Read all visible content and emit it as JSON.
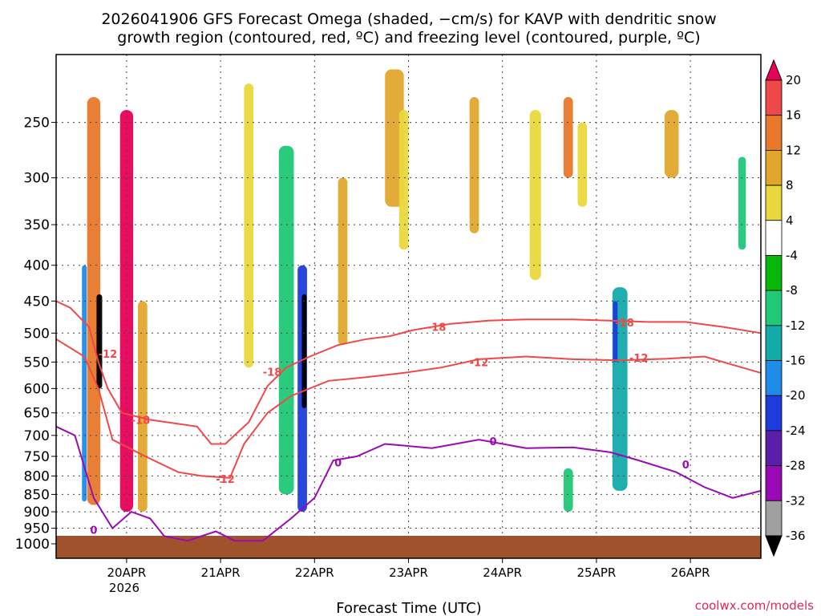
{
  "chart_data": {
    "type": "heatmap",
    "title_line1": "2026041906 GFS Forecast Omega (shaded, −cm/s) for KAVP with dendritic snow",
    "title_line2": "growth region (contoured, red, ºC) and freezing level (contoured, purple, ºC)",
    "xlabel": "Forecast Time (UTC)",
    "ylabel": "",
    "credit": "coolwx.com/models",
    "x_ticks": [
      {
        "t": 0.75,
        "label": "20APR"
      },
      {
        "t": 1.75,
        "label": "21APR"
      },
      {
        "t": 2.75,
        "label": "22APR"
      },
      {
        "t": 3.75,
        "label": "23APR"
      },
      {
        "t": 4.75,
        "label": "24APR"
      },
      {
        "t": 5.75,
        "label": "25APR"
      },
      {
        "t": 6.75,
        "label": "26APR"
      }
    ],
    "year_label": "2026",
    "xlim": [
      0,
      7.5
    ],
    "y_levels": [
      250,
      300,
      350,
      400,
      450,
      500,
      550,
      600,
      650,
      700,
      750,
      800,
      850,
      900,
      950,
      1000
    ],
    "ylim": [
      200,
      1000
    ],
    "colorbar": {
      "labels": [
        20,
        16,
        12,
        8,
        4,
        -4,
        -8,
        -12,
        -16,
        -20,
        -24,
        -28,
        -32,
        -36
      ],
      "colors": [
        "#e8005a",
        "#f04848",
        "#e8782a",
        "#e2a62c",
        "#e8d83c",
        "#ffffff",
        "#08b808",
        "#20c878",
        "#14aaaa",
        "#1e8ce6",
        "#1e3cdc",
        "#5a1eaa",
        "#9a0ab4",
        "#a0a0a0",
        "#000000"
      ]
    },
    "series": [
      {
        "name": "DGZ -18C",
        "color": "#f04848",
        "points": [
          [
            0,
            450
          ],
          [
            0.15,
            460
          ],
          [
            0.35,
            490
          ],
          [
            0.45,
            550
          ],
          [
            0.55,
            600
          ],
          [
            0.7,
            650
          ],
          [
            1.0,
            665
          ],
          [
            1.5,
            680
          ],
          [
            1.65,
            720
          ],
          [
            1.8,
            720
          ],
          [
            2.05,
            670
          ],
          [
            2.25,
            595
          ],
          [
            2.45,
            560
          ],
          [
            2.7,
            540
          ],
          [
            3.0,
            520
          ],
          [
            3.3,
            510
          ],
          [
            3.55,
            505
          ],
          [
            3.8,
            495
          ],
          [
            4.2,
            485
          ],
          [
            4.6,
            480
          ],
          [
            5.0,
            478
          ],
          [
            5.5,
            478
          ],
          [
            5.9,
            480
          ],
          [
            6.3,
            482
          ],
          [
            6.7,
            482
          ],
          [
            7.1,
            490
          ],
          [
            7.5,
            500
          ]
        ],
        "labels": [
          {
            "t": 0.9,
            "p": 665,
            "text": "-18"
          },
          {
            "t": 2.3,
            "p": 568,
            "text": "-18"
          },
          {
            "t": 4.05,
            "p": 490,
            "text": "-18"
          },
          {
            "t": 6.05,
            "p": 483,
            "text": "-18"
          }
        ]
      },
      {
        "name": "DGZ -12C",
        "color": "#f04848",
        "points": [
          [
            0,
            510
          ],
          [
            0.3,
            540
          ],
          [
            0.45,
            600
          ],
          [
            0.6,
            710
          ],
          [
            0.95,
            750
          ],
          [
            1.3,
            790
          ],
          [
            1.55,
            800
          ],
          [
            1.85,
            805
          ],
          [
            2.0,
            720
          ],
          [
            2.25,
            650
          ],
          [
            2.5,
            615
          ],
          [
            2.9,
            585
          ],
          [
            3.3,
            578
          ],
          [
            3.7,
            570
          ],
          [
            4.1,
            560
          ],
          [
            4.5,
            545
          ],
          [
            5.0,
            540
          ],
          [
            5.5,
            545
          ],
          [
            6.0,
            547
          ],
          [
            6.5,
            544
          ],
          [
            6.9,
            540
          ],
          [
            7.2,
            555
          ],
          [
            7.5,
            570
          ]
        ],
        "labels": [
          {
            "t": 0.55,
            "p": 535,
            "text": "-12"
          },
          {
            "t": 1.8,
            "p": 808,
            "text": "-12"
          },
          {
            "t": 4.5,
            "p": 550,
            "text": "-12"
          },
          {
            "t": 6.2,
            "p": 542,
            "text": "-12"
          }
        ]
      },
      {
        "name": "Freezing level 0C",
        "color": "#9a0ab4",
        "points": [
          [
            0,
            680
          ],
          [
            0.2,
            700
          ],
          [
            0.4,
            860
          ],
          [
            0.6,
            950
          ],
          [
            0.8,
            900
          ],
          [
            1.0,
            920
          ],
          [
            1.15,
            975
          ],
          [
            1.4,
            990
          ],
          [
            1.7,
            960
          ],
          [
            1.9,
            990
          ],
          [
            2.2,
            990
          ],
          [
            2.5,
            920
          ],
          [
            2.75,
            860
          ],
          [
            2.95,
            760
          ],
          [
            3.2,
            750
          ],
          [
            3.5,
            720
          ],
          [
            4.0,
            730
          ],
          [
            4.5,
            710
          ],
          [
            5.0,
            730
          ],
          [
            5.5,
            728
          ],
          [
            5.9,
            740
          ],
          [
            6.2,
            760
          ],
          [
            6.6,
            790
          ],
          [
            6.9,
            830
          ],
          [
            7.2,
            860
          ],
          [
            7.5,
            840
          ]
        ],
        "labels": [
          {
            "t": 0.4,
            "p": 955,
            "text": "0"
          },
          {
            "t": 3.0,
            "p": 765,
            "text": "0"
          },
          {
            "t": 4.65,
            "p": 713,
            "text": "0"
          },
          {
            "t": 6.7,
            "p": 770,
            "text": "0"
          }
        ]
      }
    ],
    "omega_features": [
      {
        "t": 0.4,
        "p_top": 230,
        "p_bot": 880,
        "w": 0.14,
        "value": 16
      },
      {
        "t": 0.75,
        "p_top": 240,
        "p_bot": 900,
        "w": 0.14,
        "value": 20
      },
      {
        "t": 0.92,
        "p_top": 450,
        "p_bot": 900,
        "w": 0.1,
        "value": 12
      },
      {
        "t": 0.46,
        "p_top": 440,
        "p_bot": 600,
        "w": 0.06,
        "value": -36
      },
      {
        "t": 0.3,
        "p_top": 400,
        "p_bot": 870,
        "w": 0.05,
        "value": -16
      },
      {
        "t": 2.62,
        "p_top": 400,
        "p_bot": 900,
        "w": 0.1,
        "value": -20
      },
      {
        "t": 2.64,
        "p_top": 440,
        "p_bot": 640,
        "w": 0.05,
        "value": -36
      },
      {
        "t": 2.45,
        "p_top": 270,
        "p_bot": 850,
        "w": 0.16,
        "value": -8
      },
      {
        "t": 2.05,
        "p_top": 220,
        "p_bot": 560,
        "w": 0.1,
        "value": 8
      },
      {
        "t": 1.45,
        "p_top": 370,
        "p_bot": 560,
        "w": 0.12,
        "value": 4
      },
      {
        "t": 2.85,
        "p_top": 230,
        "p_bot": 430,
        "w": 0.1,
        "value": 4
      },
      {
        "t": 3.05,
        "p_top": 300,
        "p_bot": 520,
        "w": 0.1,
        "value": 12
      },
      {
        "t": 3.6,
        "p_top": 210,
        "p_bot": 330,
        "w": 0.2,
        "value": 12
      },
      {
        "t": 3.7,
        "p_top": 240,
        "p_bot": 380,
        "w": 0.1,
        "value": 8
      },
      {
        "t": 4.45,
        "p_top": 230,
        "p_bot": 360,
        "w": 0.1,
        "value": 12
      },
      {
        "t": 5.1,
        "p_top": 240,
        "p_bot": 420,
        "w": 0.12,
        "value": 8
      },
      {
        "t": 5.45,
        "p_top": 230,
        "p_bot": 300,
        "w": 0.1,
        "value": 16
      },
      {
        "t": 5.6,
        "p_top": 250,
        "p_bot": 330,
        "w": 0.1,
        "value": 8
      },
      {
        "t": 6.0,
        "p_top": 430,
        "p_bot": 840,
        "w": 0.16,
        "value": -12
      },
      {
        "t": 5.95,
        "p_top": 450,
        "p_bot": 550,
        "w": 0.05,
        "value": -20
      },
      {
        "t": 6.55,
        "p_top": 240,
        "p_bot": 300,
        "w": 0.15,
        "value": 12
      },
      {
        "t": 7.3,
        "p_top": 280,
        "p_bot": 380,
        "w": 0.08,
        "value": -8
      },
      {
        "t": 7.35,
        "p_top": 480,
        "p_bot": 760,
        "w": 0.08,
        "value": 4
      },
      {
        "t": 5.45,
        "p_top": 780,
        "p_bot": 900,
        "w": 0.1,
        "value": -8
      },
      {
        "t": 3.9,
        "p_top": 600,
        "p_bot": 860,
        "w": 0.1,
        "value": 4
      }
    ]
  }
}
